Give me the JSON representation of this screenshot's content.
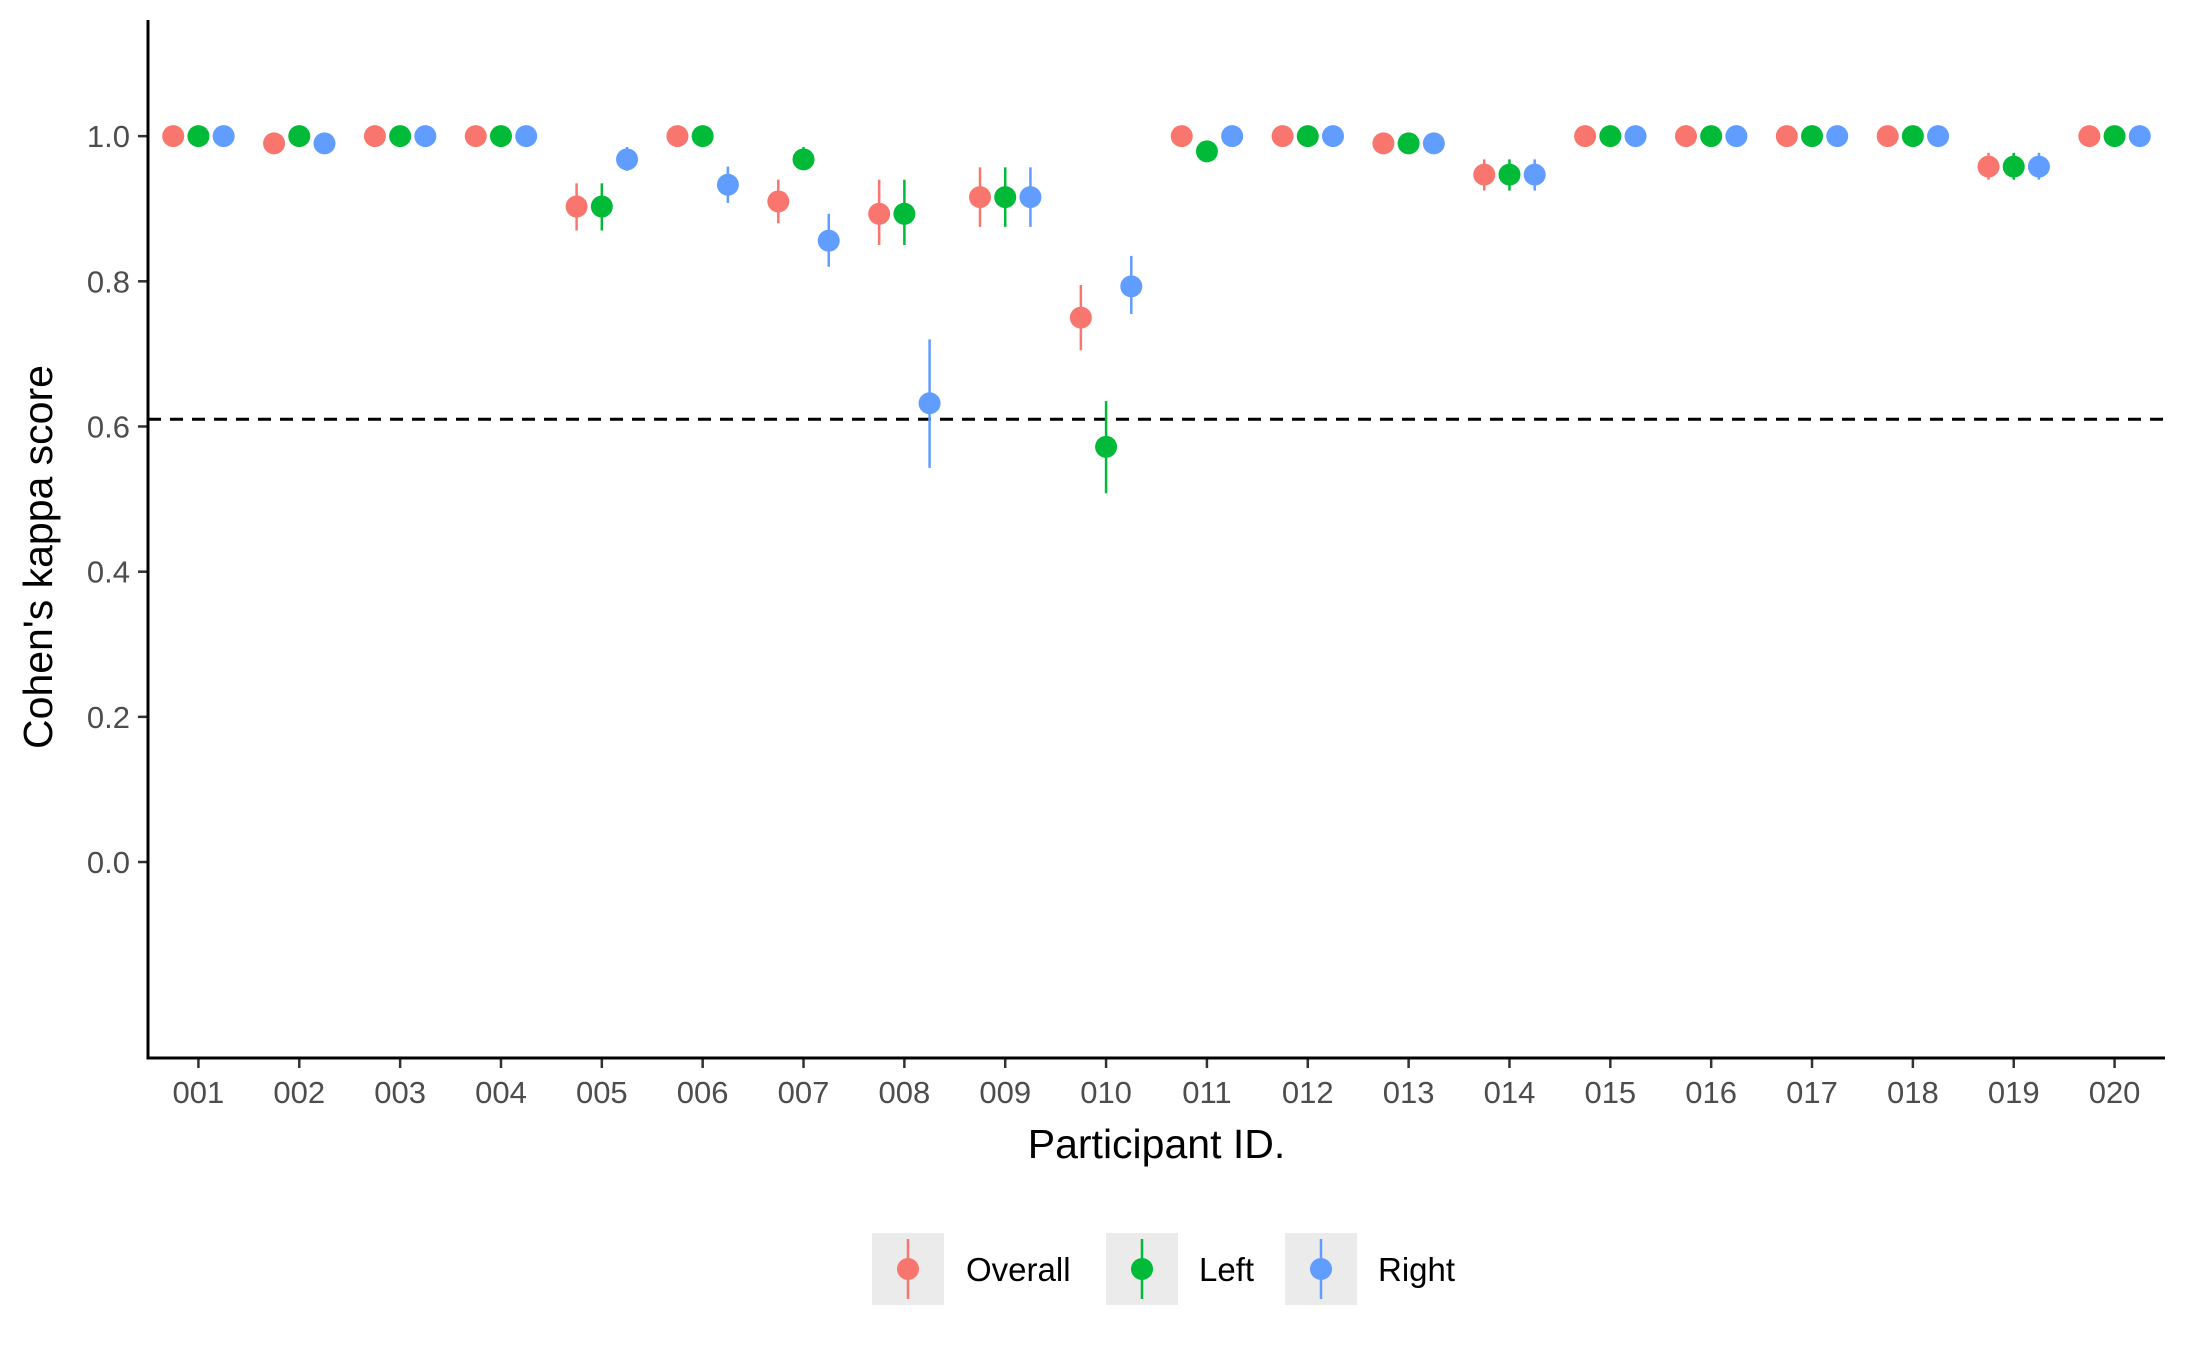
{
  "chart_data": {
    "type": "scatter",
    "xlabel": "Participant ID.",
    "ylabel": "Cohen's kappa score",
    "ylim": [
      -0.27,
      1.16
    ],
    "yticks": [
      0.0,
      0.2,
      0.4,
      0.6,
      0.8,
      1.0
    ],
    "ytick_labels": [
      "0.0",
      "0.2",
      "0.4",
      "0.6",
      "0.8",
      "1.0"
    ],
    "categories": [
      "001",
      "002",
      "003",
      "004",
      "005",
      "006",
      "007",
      "008",
      "009",
      "010",
      "011",
      "012",
      "013",
      "014",
      "015",
      "016",
      "017",
      "018",
      "019",
      "020"
    ],
    "reference_line": 0.61,
    "grid": false,
    "legend_position": "bottom",
    "series": [
      {
        "name": "Overall",
        "color": "#F8766D",
        "values": [
          1.0,
          0.99,
          1.0,
          1.0,
          0.903,
          1.0,
          0.91,
          0.893,
          0.916,
          0.75,
          1.0,
          1.0,
          0.99,
          0.947,
          1.0,
          1.0,
          1.0,
          1.0,
          0.958,
          1.0
        ],
        "lower": [
          1.0,
          0.99,
          1.0,
          1.0,
          0.87,
          1.0,
          0.88,
          0.85,
          0.875,
          0.705,
          1.0,
          1.0,
          0.99,
          0.925,
          1.0,
          1.0,
          1.0,
          1.0,
          0.94,
          1.0
        ],
        "upper": [
          1.0,
          0.99,
          1.0,
          1.0,
          0.935,
          1.0,
          0.94,
          0.94,
          0.957,
          0.795,
          1.0,
          1.0,
          0.99,
          0.968,
          1.0,
          1.0,
          1.0,
          1.0,
          0.977,
          1.0
        ]
      },
      {
        "name": "Left",
        "color": "#00BA38",
        "values": [
          1.0,
          1.0,
          1.0,
          1.0,
          0.903,
          1.0,
          0.968,
          0.893,
          0.916,
          0.572,
          0.979,
          1.0,
          0.99,
          0.947,
          1.0,
          1.0,
          1.0,
          1.0,
          0.958,
          1.0
        ],
        "lower": [
          1.0,
          1.0,
          1.0,
          1.0,
          0.87,
          1.0,
          0.955,
          0.85,
          0.875,
          0.508,
          0.979,
          1.0,
          0.99,
          0.925,
          1.0,
          1.0,
          1.0,
          1.0,
          0.94,
          1.0
        ],
        "upper": [
          1.0,
          1.0,
          1.0,
          1.0,
          0.935,
          1.0,
          0.985,
          0.94,
          0.957,
          0.635,
          0.979,
          1.0,
          0.99,
          0.968,
          1.0,
          1.0,
          1.0,
          1.0,
          0.977,
          1.0
        ]
      },
      {
        "name": "Right",
        "color": "#619CFF",
        "values": [
          1.0,
          0.99,
          1.0,
          1.0,
          0.968,
          0.933,
          0.856,
          0.632,
          0.916,
          0.793,
          1.0,
          1.0,
          0.99,
          0.947,
          1.0,
          1.0,
          1.0,
          1.0,
          0.958,
          1.0
        ],
        "lower": [
          1.0,
          0.99,
          1.0,
          1.0,
          0.952,
          0.908,
          0.82,
          0.543,
          0.875,
          0.755,
          1.0,
          1.0,
          0.99,
          0.925,
          1.0,
          1.0,
          1.0,
          1.0,
          0.94,
          1.0
        ],
        "upper": [
          1.0,
          0.99,
          1.0,
          1.0,
          0.985,
          0.958,
          0.893,
          0.72,
          0.957,
          0.835,
          1.0,
          1.0,
          0.99,
          0.968,
          1.0,
          1.0,
          1.0,
          1.0,
          0.977,
          1.0
        ]
      }
    ]
  }
}
